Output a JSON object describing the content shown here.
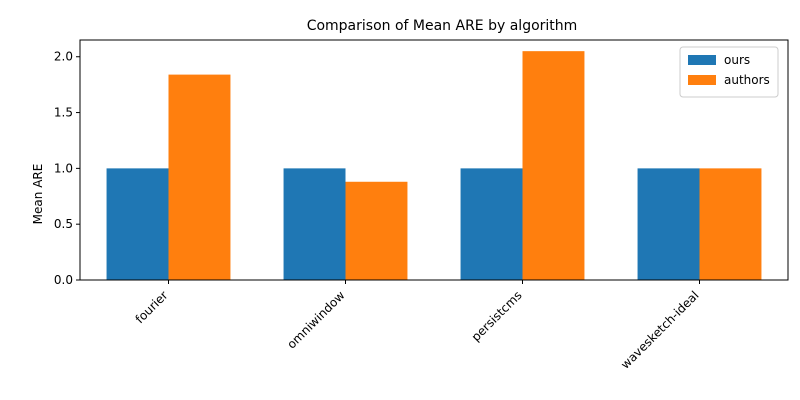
{
  "chart_data": {
    "type": "bar",
    "title": "Comparison of Mean ARE by algorithm",
    "xlabel": "",
    "ylabel": "Mean ARE",
    "categories": [
      "fourier",
      "omniwindow",
      "persistcms",
      "wavesketch-ideal"
    ],
    "series": [
      {
        "name": "ours",
        "color": "#1f77b4",
        "values": [
          1.0,
          1.0,
          1.0,
          1.0
        ]
      },
      {
        "name": "authors",
        "color": "#ff7f0e",
        "values": [
          1.84,
          0.88,
          2.05,
          1.0
        ]
      }
    ],
    "ylim": [
      0,
      2.15
    ],
    "yticks": [
      "0.0",
      "0.5",
      "1.0",
      "1.5",
      "2.0"
    ],
    "grid": false,
    "legend_position": "top-right"
  }
}
